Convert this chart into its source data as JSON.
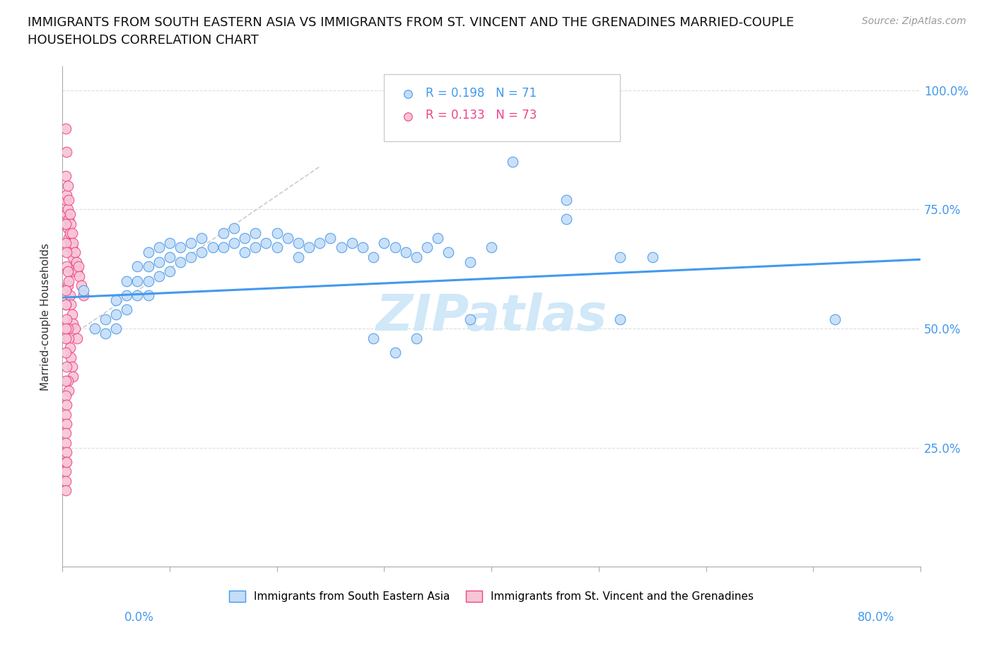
{
  "title": "IMMIGRANTS FROM SOUTH EASTERN ASIA VS IMMIGRANTS FROM ST. VINCENT AND THE GRENADINES MARRIED-COUPLE\nHOUSEHOLDS CORRELATION CHART",
  "source": "Source: ZipAtlas.com",
  "ylabel": "Married-couple Households",
  "xlim": [
    0.0,
    0.8
  ],
  "ylim": [
    0.0,
    1.05
  ],
  "blue_color": "#c5ddf7",
  "pink_color": "#f7c5d5",
  "line_blue": "#4499ee",
  "line_pink": "#ee4488",
  "line_gray": "#cccccc",
  "background": "#ffffff",
  "blue_scatter_x": [
    0.02,
    0.03,
    0.04,
    0.04,
    0.05,
    0.05,
    0.05,
    0.06,
    0.06,
    0.06,
    0.07,
    0.07,
    0.07,
    0.08,
    0.08,
    0.08,
    0.08,
    0.09,
    0.09,
    0.09,
    0.1,
    0.1,
    0.1,
    0.11,
    0.11,
    0.12,
    0.12,
    0.13,
    0.13,
    0.14,
    0.15,
    0.15,
    0.16,
    0.16,
    0.17,
    0.17,
    0.18,
    0.18,
    0.19,
    0.2,
    0.2,
    0.21,
    0.22,
    0.22,
    0.23,
    0.24,
    0.25,
    0.26,
    0.27,
    0.28,
    0.29,
    0.3,
    0.31,
    0.32,
    0.33,
    0.34,
    0.35,
    0.36,
    0.38,
    0.4,
    0.29,
    0.31,
    0.33,
    0.38,
    0.52,
    0.42,
    0.47,
    0.47,
    0.52,
    0.72,
    0.55
  ],
  "blue_scatter_y": [
    0.58,
    0.5,
    0.52,
    0.49,
    0.56,
    0.53,
    0.5,
    0.6,
    0.57,
    0.54,
    0.63,
    0.6,
    0.57,
    0.66,
    0.63,
    0.6,
    0.57,
    0.67,
    0.64,
    0.61,
    0.68,
    0.65,
    0.62,
    0.67,
    0.64,
    0.68,
    0.65,
    0.69,
    0.66,
    0.67,
    0.7,
    0.67,
    0.71,
    0.68,
    0.69,
    0.66,
    0.7,
    0.67,
    0.68,
    0.7,
    0.67,
    0.69,
    0.68,
    0.65,
    0.67,
    0.68,
    0.69,
    0.67,
    0.68,
    0.67,
    0.65,
    0.68,
    0.67,
    0.66,
    0.65,
    0.67,
    0.69,
    0.66,
    0.64,
    0.67,
    0.48,
    0.45,
    0.48,
    0.52,
    0.65,
    0.85,
    0.77,
    0.73,
    0.52,
    0.52,
    0.65
  ],
  "pink_scatter_x": [
    0.003,
    0.003,
    0.003,
    0.004,
    0.004,
    0.004,
    0.005,
    0.005,
    0.005,
    0.006,
    0.006,
    0.006,
    0.007,
    0.007,
    0.007,
    0.008,
    0.008,
    0.009,
    0.009,
    0.01,
    0.01,
    0.01,
    0.012,
    0.012,
    0.013,
    0.014,
    0.015,
    0.016,
    0.018,
    0.02,
    0.003,
    0.003,
    0.004,
    0.004,
    0.005,
    0.005,
    0.006,
    0.007,
    0.008,
    0.009,
    0.01,
    0.012,
    0.014,
    0.003,
    0.003,
    0.004,
    0.005,
    0.006,
    0.007,
    0.008,
    0.009,
    0.01,
    0.003,
    0.003,
    0.004,
    0.005,
    0.006,
    0.003,
    0.003,
    0.004,
    0.003,
    0.004,
    0.003,
    0.003,
    0.004,
    0.003,
    0.003,
    0.003,
    0.003,
    0.004,
    0.003,
    0.003
  ],
  "pink_scatter_y": [
    0.92,
    0.82,
    0.77,
    0.87,
    0.78,
    0.74,
    0.8,
    0.75,
    0.71,
    0.77,
    0.73,
    0.69,
    0.74,
    0.7,
    0.67,
    0.72,
    0.68,
    0.7,
    0.67,
    0.68,
    0.65,
    0.62,
    0.66,
    0.63,
    0.64,
    0.62,
    0.63,
    0.61,
    0.59,
    0.57,
    0.72,
    0.68,
    0.66,
    0.63,
    0.62,
    0.59,
    0.6,
    0.57,
    0.55,
    0.53,
    0.51,
    0.5,
    0.48,
    0.58,
    0.55,
    0.52,
    0.5,
    0.48,
    0.46,
    0.44,
    0.42,
    0.4,
    0.48,
    0.45,
    0.42,
    0.39,
    0.37,
    0.39,
    0.36,
    0.34,
    0.32,
    0.3,
    0.28,
    0.26,
    0.24,
    0.22,
    0.2,
    0.18,
    0.16,
    0.22,
    0.5,
    0.55
  ],
  "blue_line_x": [
    0.0,
    0.8
  ],
  "blue_line_y": [
    0.565,
    0.645
  ],
  "gray_line_x": [
    0.005,
    0.24
  ],
  "gray_line_y": [
    0.48,
    0.84
  ],
  "yticks": [
    0.0,
    0.25,
    0.5,
    0.75,
    1.0
  ],
  "ytick_right_labels": [
    "",
    "25.0%",
    "50.0%",
    "75.0%",
    "100.0%"
  ],
  "xticks": [
    0.0,
    0.1,
    0.2,
    0.3,
    0.4,
    0.5,
    0.6,
    0.7,
    0.8
  ],
  "legend_r1_color": "#4499ee",
  "legend_r2_color": "#ee4488",
  "watermark_color": "#d0e8f8",
  "title_fontsize": 13,
  "source_fontsize": 10
}
